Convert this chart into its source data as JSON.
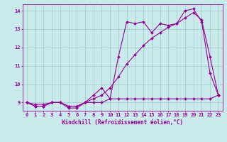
{
  "xlabel": "Windchill (Refroidissement éolien,°C)",
  "bg_color": "#c8eaea",
  "line_color": "#990099",
  "grid_color": "#a0c8c8",
  "xlim": [
    -0.5,
    23.5
  ],
  "ylim": [
    8.55,
    14.35
  ],
  "xticks": [
    0,
    1,
    2,
    3,
    4,
    5,
    6,
    7,
    8,
    9,
    10,
    11,
    12,
    13,
    14,
    15,
    16,
    17,
    18,
    19,
    20,
    21,
    22,
    23
  ],
  "yticks": [
    9,
    10,
    11,
    12,
    13,
    14
  ],
  "line1_x": [
    0,
    1,
    2,
    3,
    4,
    5,
    6,
    7,
    8,
    9,
    10,
    11,
    12,
    13,
    14,
    15,
    16,
    17,
    18,
    19,
    20,
    21,
    22,
    23
  ],
  "line1_y": [
    9.0,
    8.8,
    8.8,
    9.0,
    9.0,
    8.7,
    8.7,
    9.0,
    9.4,
    9.8,
    9.2,
    11.5,
    13.4,
    13.3,
    13.4,
    12.8,
    13.3,
    13.2,
    13.3,
    14.0,
    14.1,
    13.4,
    10.6,
    9.4
  ],
  "line2_x": [
    0,
    1,
    2,
    3,
    4,
    5,
    6,
    7,
    8,
    9,
    10,
    11,
    12,
    13,
    14,
    15,
    16,
    17,
    18,
    19,
    20,
    21,
    22,
    23
  ],
  "line2_y": [
    9.0,
    8.8,
    8.8,
    9.0,
    9.0,
    8.8,
    8.8,
    9.0,
    9.0,
    9.0,
    9.2,
    9.2,
    9.2,
    9.2,
    9.2,
    9.2,
    9.2,
    9.2,
    9.2,
    9.2,
    9.2,
    9.2,
    9.2,
    9.4
  ],
  "line3_x": [
    0,
    1,
    2,
    3,
    4,
    5,
    6,
    7,
    8,
    9,
    10,
    11,
    12,
    13,
    14,
    15,
    16,
    17,
    18,
    19,
    20,
    21,
    22,
    23
  ],
  "line3_y": [
    9.0,
    8.9,
    8.9,
    9.0,
    9.0,
    8.8,
    8.8,
    9.0,
    9.2,
    9.4,
    9.8,
    10.4,
    11.1,
    11.6,
    12.1,
    12.5,
    12.8,
    13.1,
    13.3,
    13.6,
    13.9,
    13.5,
    11.5,
    9.4
  ],
  "markersize": 2.0,
  "linewidth": 0.8,
  "tick_fontsize": 5.0,
  "xlabel_fontsize": 5.5,
  "tick_color": "#990099",
  "label_color": "#990099"
}
